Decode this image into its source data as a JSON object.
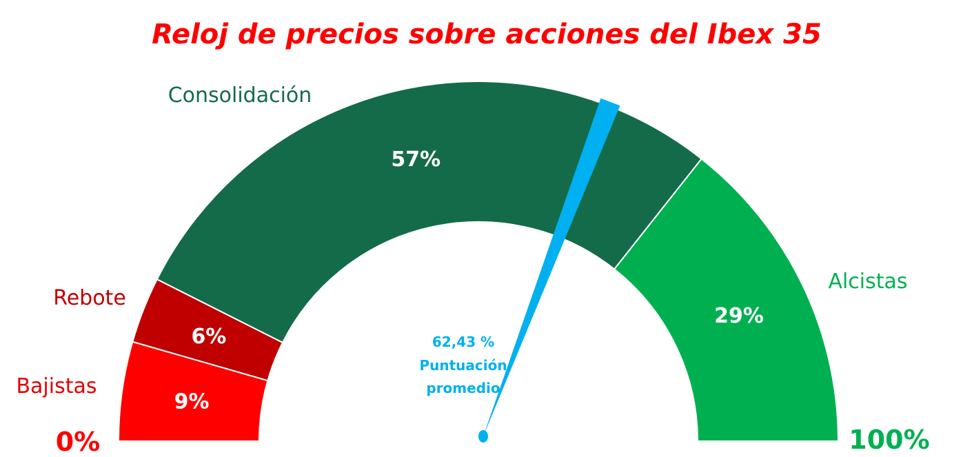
{
  "chart_data": {
    "type": "gauge",
    "title": "Reloj de precios sobre acciones del Ibex 35",
    "min_label": "0%",
    "max_label": "100%",
    "segments": [
      {
        "name": "Bajistas",
        "value": 9,
        "label": "9%",
        "color": "#ff0000",
        "label_color": "#e60000"
      },
      {
        "name": "Rebote",
        "value": 6,
        "label": "6%",
        "color": "#c00000",
        "label_color": "#c00000"
      },
      {
        "name": "Consolidación",
        "value": 57,
        "label": "57%",
        "color": "#146b4a",
        "label_color": "#146b4a"
      },
      {
        "name": "Alcistas",
        "value": 29,
        "label": "29%",
        "color": "#00b050",
        "label_color": "#00b050"
      }
    ],
    "needle": {
      "value": 62.43,
      "value_label": "62,43 %",
      "caption_lines": [
        "Puntuación",
        "promedio"
      ],
      "color": "#00b0f0"
    },
    "title_color": "#ff0000",
    "min_label_color": "#ff0000",
    "max_label_color": "#00b050"
  }
}
